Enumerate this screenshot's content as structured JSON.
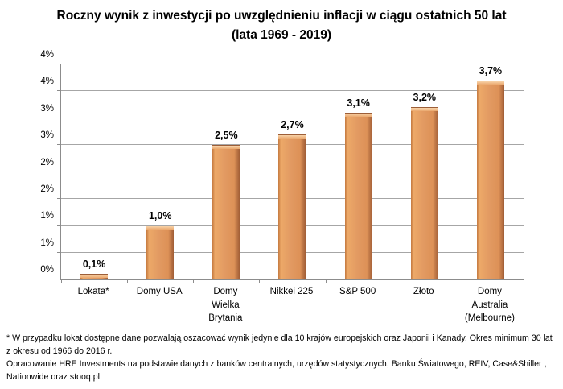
{
  "title": {
    "line1": "Roczny wynik z inwestycji po uwzględnieniu inflacji w ciągu ostatnich 50 lat",
    "line2": "(lata 1969 - 2019)"
  },
  "chart_data": {
    "type": "bar",
    "title": "Roczny wynik z inwestycji po uwzględnieniu inflacji w ciągu ostatnich 50 lat (lata 1969 - 2019)",
    "categories": [
      "Lokata*",
      "Domy USA",
      "Domy\nWielka\nBrytania",
      "Nikkei 225",
      "S&P 500",
      "Złoto",
      "Domy\nAustralia\n(Melbourne)"
    ],
    "values": [
      0.1,
      1.0,
      2.5,
      2.7,
      3.1,
      3.2,
      3.7
    ],
    "value_labels": [
      "0,1%",
      "1,0%",
      "2,5%",
      "2,7%",
      "3,1%",
      "3,2%",
      "3,7%"
    ],
    "xlabel": "",
    "ylabel": "",
    "ylim": [
      0,
      4
    ],
    "y_tick_step": 0.5,
    "y_tick_labels_bottom_to_top": [
      "0%",
      "1%",
      "1%",
      "2%",
      "2%",
      "3%",
      "3%",
      "4%",
      "4%"
    ],
    "grid": true,
    "legend": false,
    "colors": {
      "bar_fill": "#e29a62",
      "bar_border": "#9c5e38",
      "bar_highlight": "#f8d3a9",
      "gridline": "#a6a6a6",
      "axis": "#8c8c8c",
      "text": "#000000"
    }
  },
  "footnote": {
    "line1": "* W przypadku lokat dostępne dane pozwalają oszacować wynik jedynie dla 10 krajów europejskich oraz Japonii i Kanady. Okres minimum 30 lat  z okresu od 1966 do 2016 r.",
    "line2": "Opracowanie HRE Investments na podstawie danych z banków centralnych, urzędów statystycznych, Banku Światowego, REIV, Case&Shiller , Nationwide oraz stooq.pl"
  }
}
